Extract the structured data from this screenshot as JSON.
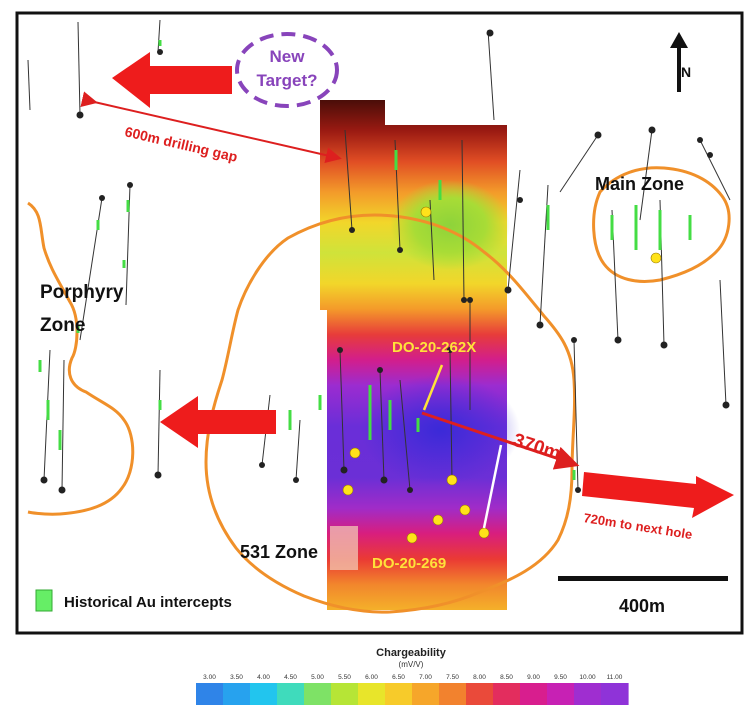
{
  "map": {
    "labels": {
      "new_target_line1": "New",
      "new_target_line2": "Target?",
      "drilling_gap": "600m drilling gap",
      "main_zone": "Main Zone",
      "porphyry_line1": "Porphyry",
      "porphyry_line2": "Zone",
      "hole_262x": "DO-20-262X",
      "hole_269": "DO-20-269",
      "distance_370": "370m",
      "next_hole": "720m to next hole",
      "zone_531": "531 Zone",
      "scale": "400m",
      "north": "N"
    },
    "legend": {
      "historical_au": "Historical Au intercepts"
    },
    "colors": {
      "arrow": "#ee1c1c",
      "zone_outline": "#f0902a",
      "new_target_circle": "#8844bb",
      "hole_label": "#ffe23a",
      "intercept": "#44dd44",
      "collar_gold": "#ffe21a"
    }
  },
  "colorbar": {
    "title": "Chargeability",
    "unit": "(mV/V)",
    "ticks": [
      "3.00",
      "3.50",
      "4.00",
      "4.50",
      "5.00",
      "5.50",
      "6.00",
      "6.50",
      "7.00",
      "7.50",
      "8.00",
      "8.50",
      "9.00",
      "9.50",
      "10.00",
      "11.00"
    ],
    "colors": [
      "#2f84e8",
      "#27a2ee",
      "#22c5ee",
      "#3fdbbc",
      "#7ee266",
      "#b6e536",
      "#e8e52a",
      "#f7cb2a",
      "#f6a62a",
      "#f2822e",
      "#ea4a3a",
      "#e32d5e",
      "#d81e8e",
      "#c721b4",
      "#9f2ed0",
      "#8f33d8"
    ]
  }
}
